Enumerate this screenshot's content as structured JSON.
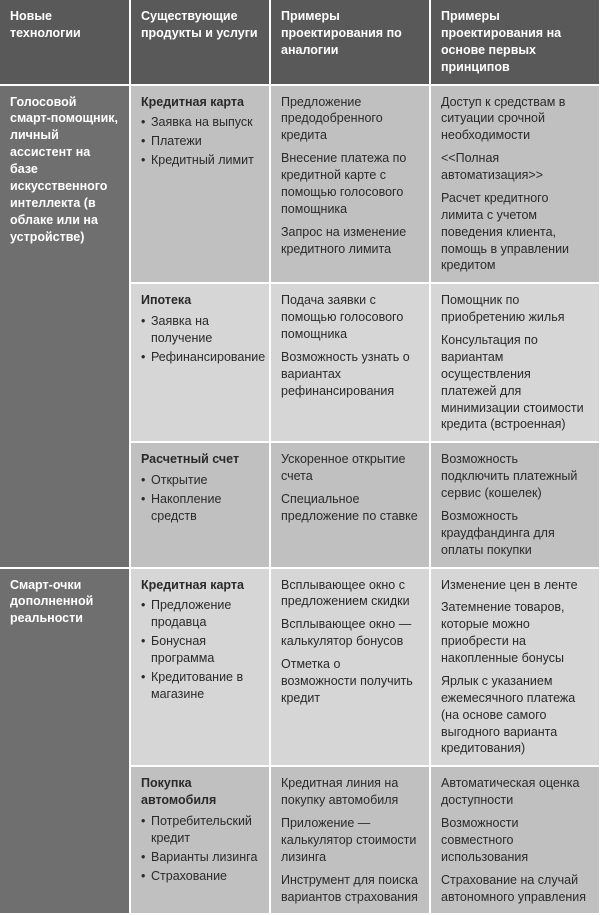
{
  "colors": {
    "header_bg": "#595959",
    "tech_bg": "#6f6f6f",
    "band_a_bg": "#c0c0c0",
    "band_b_bg": "#d6d6d6",
    "header_text": "#ffffff",
    "body_text": "#2a2a2a",
    "row_divider": "#ffffff"
  },
  "columns": {
    "tech": "Новые технологии",
    "prod": "Существующие продукты и услуги",
    "anlg": "Примеры проектирования по аналогии",
    "first": "Примеры проектирования на основе первых принципов"
  },
  "groups": [
    {
      "tech": "Голосовой смарт-помощник, личный ассистент на базе искусственного интеллекта (в облаке или на устройстве)",
      "rows": [
        {
          "band": "a",
          "product_title": "Кредитная карта",
          "product_bullets": [
            "Заявка на выпуск",
            "Платежи",
            "Кредитный лимит"
          ],
          "analogy": [
            "Предложение предодобренного кредита",
            "Внесение платежа по кредитной карте с помощью голосового помощника",
            "Запрос на изменение кредитного лимита"
          ],
          "first": [
            "Доступ к средствам в ситуации срочной необходимости",
            "<<Полная автоматизация>>",
            "Расчет кредитного лимита с учетом поведения клиента, помощь в управлении кредитом"
          ]
        },
        {
          "band": "b",
          "product_title": "Ипотека",
          "product_bullets": [
            "Заявка на получение",
            "Рефинансирование"
          ],
          "analogy": [
            "Подача заявки с помощью голосового помощника",
            "Возможность узнать о вариантах рефинансирования"
          ],
          "first": [
            "Помощник по приобретению жилья",
            "Консультация по вариантам осуществления платежей для минимизации стоимости кредита (встроенная)"
          ]
        },
        {
          "band": "a",
          "product_title": "Расчетный счет",
          "product_bullets": [
            "Открытие",
            "Накопление средств"
          ],
          "analogy": [
            "Ускоренное открытие счета",
            "Специальное предложение по ставке"
          ],
          "first": [
            "Возможность подключить платежный сервис (кошелек)",
            "Возможность краудфандинга для оплаты покупки"
          ]
        }
      ]
    },
    {
      "tech": "Смарт-очки дополненной реальности",
      "rows": [
        {
          "band": "b",
          "product_title": "Кредитная карта",
          "product_bullets": [
            "Предложение продавца",
            "Бонусная программа",
            "Кредитование в магазине"
          ],
          "analogy": [
            "Всплывающее окно с предложением скидки",
            "Всплывающее окно — калькулятор бонусов",
            "Отметка о возможности получить кредит"
          ],
          "first": [
            "Изменение цен в ленте",
            "Затемнение товаров, которые можно приобрести на накопленные бонусы",
            "Ярлык с указанием ежемесячного платежа (на основе самого выгодного варианта кредитования)"
          ]
        },
        {
          "band": "a",
          "product_title": "Покупка автомобиля",
          "product_bullets": [
            "Потребительский кредит",
            "Варианты лизинга",
            "Страхование"
          ],
          "analogy": [
            "Кредитная линия на покупку автомобиля",
            "Приложение — калькулятор стоимости лизинга",
            "Инструмент для поиска вариантов страхования"
          ],
          "first": [
            "Автоматическая оценка доступности",
            "Возможности совместного использования",
            "Страхование на случай автономного управления"
          ]
        }
      ]
    }
  ]
}
